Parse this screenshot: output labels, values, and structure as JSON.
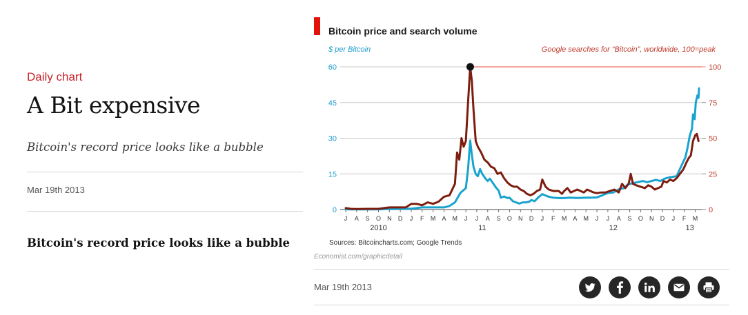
{
  "article": {
    "kicker": "Daily chart",
    "headline": "A Bit expensive",
    "subheadline": "Bitcoin's record price looks like a bubble",
    "date": "Mar 19th 2013",
    "body_title": "Bitcoin's record price looks like a bubble"
  },
  "figure": {
    "date": "Mar 19th 2013",
    "sources": "Sources: Bitcoincharts.com; Google Trends",
    "credit": "Economist.com/graphicdetail"
  },
  "social": [
    {
      "name": "twitter-icon",
      "label": "Share on Twitter"
    },
    {
      "name": "facebook-icon",
      "label": "Share on Facebook"
    },
    {
      "name": "linkedin-icon",
      "label": "Share on LinkedIn"
    },
    {
      "name": "email-icon",
      "label": "Share by email"
    },
    {
      "name": "print-icon",
      "label": "Print"
    }
  ],
  "colors": {
    "accent": "#e3120b",
    "price": "#18a3cf",
    "searches": "#7c1d0f",
    "peak_line": "#f08a7d"
  },
  "chart_data": {
    "type": "line",
    "title": "Bitcoin price and search volume",
    "left_axis_label": "$ per Bitcoin",
    "right_axis_label": "Google searches for “Bitcoin”, worldwide, 100=peak",
    "left_ylim": [
      0,
      60
    ],
    "right_ylim": [
      0,
      100
    ],
    "left_ticks": [
      0,
      15,
      30,
      45,
      60
    ],
    "right_ticks": [
      0,
      25,
      50,
      75,
      100
    ],
    "xlim": [
      0,
      32.6
    ],
    "month_labels": [
      "J",
      "A",
      "S",
      "O",
      "N",
      "D",
      "J",
      "F",
      "M",
      "A",
      "M",
      "J",
      "J",
      "A",
      "S",
      "O",
      "N",
      "D",
      "J",
      "F",
      "M",
      "A",
      "M",
      "J",
      "J",
      "A",
      "S",
      "O",
      "N",
      "D",
      "J",
      "F",
      "M"
    ],
    "year_labels": [
      {
        "label": "2010",
        "month_index": 3
      },
      {
        "label": "11",
        "month_index": 12.5
      },
      {
        "label": "12",
        "month_index": 24.5
      },
      {
        "label": "13",
        "month_index": 31.5
      }
    ],
    "peak_marker": {
      "x": 11.4,
      "value": 100
    },
    "series": [
      {
        "name": "Bitcoin price ($)",
        "axis": "left",
        "color": "#18a3cf",
        "points": [
          [
            0,
            0.06
          ],
          [
            1,
            0.06
          ],
          [
            2,
            0.06
          ],
          [
            3,
            0.1
          ],
          [
            4,
            0.2
          ],
          [
            5,
            0.25
          ],
          [
            6,
            0.35
          ],
          [
            7,
            0.9
          ],
          [
            8,
            0.9
          ],
          [
            9,
            0.9
          ],
          [
            9.5,
            1.5
          ],
          [
            10,
            3
          ],
          [
            10.5,
            7
          ],
          [
            11,
            9
          ],
          [
            11.2,
            17
          ],
          [
            11.4,
            29
          ],
          [
            11.55,
            23
          ],
          [
            11.7,
            18
          ],
          [
            11.9,
            15
          ],
          [
            12.1,
            14
          ],
          [
            12.3,
            17
          ],
          [
            12.5,
            15
          ],
          [
            12.8,
            13
          ],
          [
            13,
            12
          ],
          [
            13.2,
            13
          ],
          [
            13.5,
            11
          ],
          [
            13.8,
            9
          ],
          [
            14,
            8
          ],
          [
            14.2,
            5
          ],
          [
            14.5,
            5.5
          ],
          [
            14.8,
            4.8
          ],
          [
            15,
            5
          ],
          [
            15.3,
            3.5
          ],
          [
            15.6,
            3
          ],
          [
            15.9,
            2.5
          ],
          [
            16.2,
            3
          ],
          [
            16.5,
            3
          ],
          [
            16.8,
            3.3
          ],
          [
            17,
            4
          ],
          [
            17.3,
            3.5
          ],
          [
            17.6,
            5
          ],
          [
            18,
            6.5
          ],
          [
            18.5,
            5.5
          ],
          [
            19,
            5
          ],
          [
            19.5,
            4.8
          ],
          [
            20,
            4.8
          ],
          [
            20.5,
            5
          ],
          [
            21,
            4.9
          ],
          [
            21.5,
            4.9
          ],
          [
            22,
            5
          ],
          [
            22.5,
            5
          ],
          [
            23,
            5.1
          ],
          [
            23.5,
            6
          ],
          [
            24,
            7
          ],
          [
            24.5,
            7.2
          ],
          [
            25,
            8.5
          ],
          [
            25.5,
            9
          ],
          [
            25.8,
            10.5
          ],
          [
            26.2,
            11
          ],
          [
            26.7,
            11.5
          ],
          [
            27.2,
            12
          ],
          [
            27.6,
            11.5
          ],
          [
            28,
            12
          ],
          [
            28.4,
            12.5
          ],
          [
            28.8,
            12
          ],
          [
            29.2,
            13
          ],
          [
            29.6,
            13.5
          ],
          [
            30,
            13.8
          ],
          [
            30.3,
            14
          ],
          [
            30.6,
            17
          ],
          [
            30.9,
            20
          ],
          [
            31.1,
            22
          ],
          [
            31.3,
            26
          ],
          [
            31.5,
            31
          ],
          [
            31.7,
            34
          ],
          [
            31.8,
            40
          ],
          [
            31.95,
            38
          ],
          [
            32.05,
            45
          ],
          [
            32.2,
            48
          ],
          [
            32.3,
            47
          ],
          [
            32.35,
            51
          ]
        ]
      },
      {
        "name": "Google searches (100=peak)",
        "axis": "right",
        "color": "#7c1d0f",
        "points": [
          [
            0,
            1
          ],
          [
            0.5,
            0.5
          ],
          [
            1,
            0.4
          ],
          [
            2,
            0.5
          ],
          [
            3,
            0.5
          ],
          [
            3.5,
            1
          ],
          [
            4,
            1.5
          ],
          [
            5,
            1.5
          ],
          [
            5.5,
            1.5
          ],
          [
            6,
            4
          ],
          [
            6.5,
            4
          ],
          [
            7,
            3
          ],
          [
            7.5,
            5
          ],
          [
            8,
            4
          ],
          [
            8.5,
            5.5
          ],
          [
            9,
            9
          ],
          [
            9.5,
            10
          ],
          [
            10,
            18
          ],
          [
            10.2,
            40
          ],
          [
            10.4,
            35
          ],
          [
            10.6,
            50
          ],
          [
            10.8,
            44
          ],
          [
            11,
            48
          ],
          [
            11.2,
            75
          ],
          [
            11.4,
            100
          ],
          [
            11.55,
            90
          ],
          [
            11.7,
            70
          ],
          [
            11.9,
            48
          ],
          [
            12.1,
            44
          ],
          [
            12.4,
            40
          ],
          [
            12.7,
            35
          ],
          [
            13,
            33
          ],
          [
            13.3,
            30
          ],
          [
            13.6,
            29
          ],
          [
            13.9,
            25
          ],
          [
            14.2,
            26
          ],
          [
            14.5,
            22
          ],
          [
            14.8,
            19
          ],
          [
            15.1,
            17
          ],
          [
            15.4,
            16
          ],
          [
            15.7,
            16
          ],
          [
            16,
            14
          ],
          [
            16.3,
            13
          ],
          [
            16.6,
            11
          ],
          [
            16.9,
            10
          ],
          [
            17.2,
            11
          ],
          [
            17.5,
            13
          ],
          [
            17.8,
            14
          ],
          [
            18,
            21
          ],
          [
            18.3,
            16
          ],
          [
            18.6,
            14
          ],
          [
            19,
            13
          ],
          [
            19.5,
            13
          ],
          [
            19.8,
            11
          ],
          [
            20,
            13
          ],
          [
            20.3,
            15
          ],
          [
            20.6,
            12
          ],
          [
            20.9,
            13
          ],
          [
            21.2,
            14
          ],
          [
            21.5,
            13
          ],
          [
            21.8,
            12
          ],
          [
            22.1,
            14
          ],
          [
            22.4,
            13
          ],
          [
            22.7,
            12
          ],
          [
            23,
            11.5
          ],
          [
            23.4,
            12
          ],
          [
            23.8,
            12
          ],
          [
            24.2,
            13
          ],
          [
            24.6,
            14
          ],
          [
            25,
            12
          ],
          [
            25.3,
            18
          ],
          [
            25.6,
            15
          ],
          [
            25.9,
            18
          ],
          [
            26.1,
            25
          ],
          [
            26.3,
            18
          ],
          [
            26.6,
            17
          ],
          [
            27,
            16
          ],
          [
            27.4,
            15
          ],
          [
            27.7,
            17
          ],
          [
            28,
            16
          ],
          [
            28.3,
            14
          ],
          [
            28.6,
            15
          ],
          [
            28.9,
            16
          ],
          [
            29.1,
            20
          ],
          [
            29.4,
            19
          ],
          [
            29.7,
            21
          ],
          [
            30,
            20
          ],
          [
            30.3,
            22
          ],
          [
            30.6,
            25
          ],
          [
            30.9,
            28
          ],
          [
            31.2,
            33
          ],
          [
            31.4,
            36
          ],
          [
            31.6,
            38
          ],
          [
            31.8,
            48
          ],
          [
            32,
            52
          ],
          [
            32.15,
            53
          ],
          [
            32.3,
            48
          ]
        ]
      }
    ]
  }
}
